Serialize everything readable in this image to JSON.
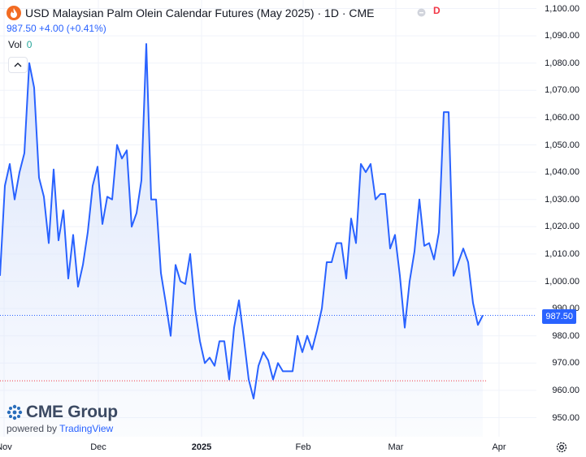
{
  "header": {
    "title": "USD Malaysian Palm Olein Calendar Futures (May 2025) · 1D · CME",
    "price_change": "987.50  +4.00 (+0.41%)",
    "delayed_badge": "D",
    "vol_label": "Vol",
    "vol_value": "0"
  },
  "price_axis": {
    "ticks": [
      "1,100.00",
      "1,090.00",
      "1,080.00",
      "1,070.00",
      "1,060.00",
      "1,050.00",
      "1,040.00",
      "1,030.00",
      "1,020.00",
      "1,010.00",
      "1,000.00",
      "990.00",
      "980.00",
      "970.00",
      "960.00",
      "950.00"
    ],
    "last_price_label": "987.50"
  },
  "time_axis": {
    "ticks": [
      {
        "label": "Nov",
        "bold": false
      },
      {
        "label": "Dec",
        "bold": false
      },
      {
        "label": "2025",
        "bold": true
      },
      {
        "label": "Feb",
        "bold": false
      },
      {
        "label": "Mar",
        "bold": false
      },
      {
        "label": "Apr",
        "bold": false
      }
    ]
  },
  "branding": {
    "name": "CME Group",
    "powered_by": "powered by",
    "platform": "TradingView"
  },
  "colors": {
    "line": "#2962ff",
    "area_top": "#dbe5fb",
    "grid": "#f0f3fa",
    "last_price_line": "#2962ff",
    "low_line": "#f23645",
    "badge": "#f23645"
  },
  "chart_data": {
    "type": "area",
    "title": "USD Malaysian Palm Olein Calendar Futures (May 2025)",
    "interval": "1D",
    "ylim": [
      945,
      1102
    ],
    "last_price": 987.5,
    "reference_low": 963.5,
    "grid": true,
    "series": [
      {
        "values": [
          1002,
          1035,
          1043,
          1030,
          1040,
          1047,
          1080,
          1071,
          1038,
          1031,
          1014,
          1041,
          1015,
          1026,
          1001,
          1017,
          998,
          1006,
          1018,
          1035,
          1042,
          1021,
          1031,
          1030,
          1050,
          1045,
          1048,
          1020,
          1025,
          1037,
          1087,
          1030,
          1030,
          1003,
          992,
          980,
          1006,
          1000,
          999,
          1010,
          990,
          978,
          970,
          972,
          969,
          978,
          978,
          964,
          983,
          993,
          979,
          964,
          957,
          969,
          974,
          971,
          964,
          970,
          967,
          967,
          967,
          980,
          974,
          980,
          975,
          982,
          990,
          1007,
          1007,
          1014,
          1014,
          1001,
          1023,
          1014,
          1043,
          1040,
          1043,
          1030,
          1032,
          1032,
          1012,
          1017,
          1002,
          983,
          1000,
          1011,
          1030,
          1013,
          1014,
          1008,
          1018,
          1062,
          1062,
          1002,
          1007,
          1012,
          1007,
          992,
          984,
          987.5
        ]
      }
    ]
  }
}
